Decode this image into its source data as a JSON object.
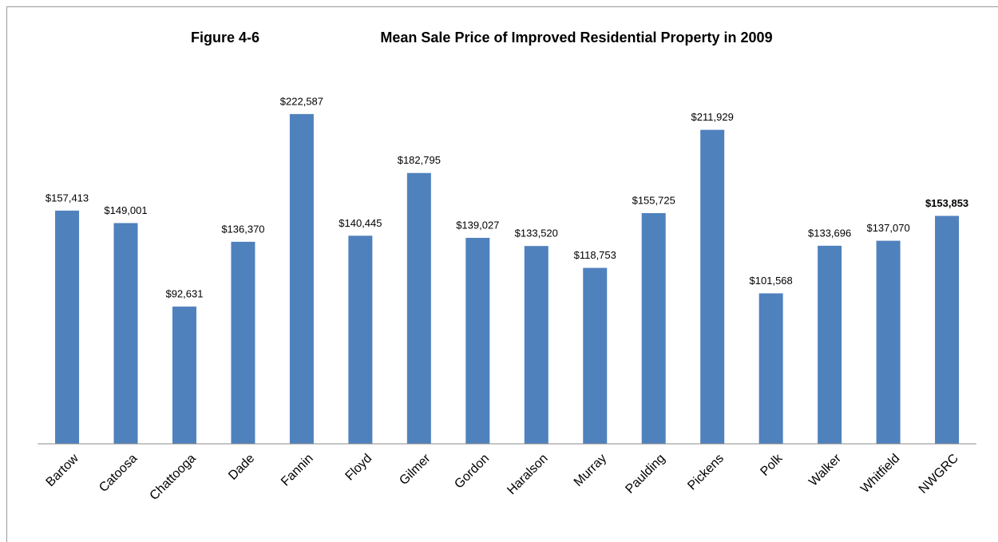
{
  "chart_data": {
    "type": "bar",
    "figure_label": "Figure 4-6",
    "title": "Mean Sale Price of Improved Residential Property in 2009",
    "categories": [
      "Bartow",
      "Catoosa",
      "Chattooga",
      "Dade",
      "Fannin",
      "Floyd",
      "Gilmer",
      "Gordon",
      "Haralson",
      "Murray",
      "Paulding",
      "Pickens",
      "Polk",
      "Walker",
      "Whitfield",
      "NWGRC"
    ],
    "values": [
      157413,
      149001,
      92631,
      136370,
      222587,
      140445,
      182795,
      139027,
      133520,
      118753,
      155725,
      211929,
      101568,
      133696,
      137070,
      153853
    ],
    "value_labels": [
      "$157,413",
      "$149,001",
      "$92,631",
      "$136,370",
      "$222,587",
      "$140,445",
      "$182,795",
      "$139,027",
      "$133,520",
      "$118,753",
      "$155,725",
      "$211,929",
      "$101,568",
      "$133,696",
      "$137,070",
      "$153,853"
    ],
    "color": "#4f81bd",
    "ylim": [
      0,
      250000
    ],
    "grid": false
  }
}
